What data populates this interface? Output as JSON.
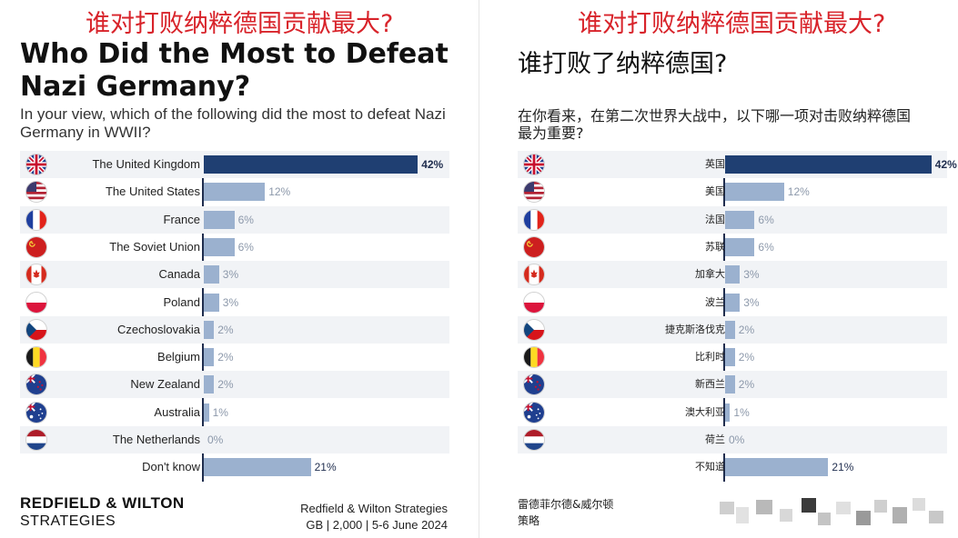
{
  "left": {
    "overlay_title": "谁对打败纳粹德国贡献最大?",
    "title": "Who Did the Most to Defeat Nazi Germany?",
    "subtitle": "In your view, which of the following did the most to defeat Nazi Germany in WWII?",
    "brand_line1": "REDFIELD & WILTON",
    "brand_line2": "STRATEGIES",
    "source_line1": "Redfield & Wilton Strategies",
    "source_line2": "GB | 2,000 | 5-6 June 2024"
  },
  "right": {
    "overlay_title": "谁对打败纳粹德国贡献最大?",
    "title": "谁打败了纳粹德国?",
    "subtitle": "在你看来，在第二次世界大战中，以下哪一项对击败纳粹德国最为重要?",
    "brand_line1": "雷德菲尔德&威尔顿",
    "brand_line2": "策略"
  },
  "colors": {
    "top_bar": "#1f3f72",
    "bar": "#9bb1cf",
    "axis": "#1f2d4e",
    "top_label": "#1f2d4e",
    "val_label": "#8c98aa",
    "overlay_red": "#d8232a"
  },
  "chart_data": [
    {
      "type": "bar",
      "orientation": "horizontal",
      "categories": [
        "The United Kingdom",
        "The United States",
        "France",
        "The Soviet Union",
        "Canada",
        "Poland",
        "Czechoslovakia",
        "Belgium",
        "New Zealand",
        "Australia",
        "The Netherlands",
        "Don't know"
      ],
      "values": [
        42,
        12,
        6,
        6,
        3,
        3,
        2,
        2,
        2,
        1,
        0,
        21
      ],
      "value_labels": [
        "42%",
        "12%",
        "6%",
        "6%",
        "3%",
        "3%",
        "2%",
        "2%",
        "2%",
        "1%",
        "0%",
        "21%"
      ],
      "flags": [
        "uk",
        "us",
        "fr",
        "su",
        "ca",
        "pl",
        "cz",
        "be",
        "nz",
        "au",
        "nl",
        ""
      ]
    },
    {
      "type": "bar",
      "orientation": "horizontal",
      "categories": [
        "英国",
        "美国",
        "法国",
        "苏联",
        "加拿大",
        "波兰",
        "捷克斯洛伐克",
        "比利时",
        "新西兰",
        "澳大利亚",
        "荷兰",
        "不知道"
      ],
      "values": [
        42,
        12,
        6,
        6,
        3,
        3,
        2,
        2,
        2,
        1,
        0,
        21
      ],
      "value_labels": [
        "42%",
        "12%",
        "6%",
        "6%",
        "3%",
        "3%",
        "2%",
        "2%",
        "2%",
        "1%",
        "0%",
        "21%"
      ],
      "flags": [
        "uk",
        "us",
        "fr",
        "su",
        "ca",
        "pl",
        "cz",
        "be",
        "nz",
        "au",
        "nl",
        ""
      ]
    }
  ]
}
